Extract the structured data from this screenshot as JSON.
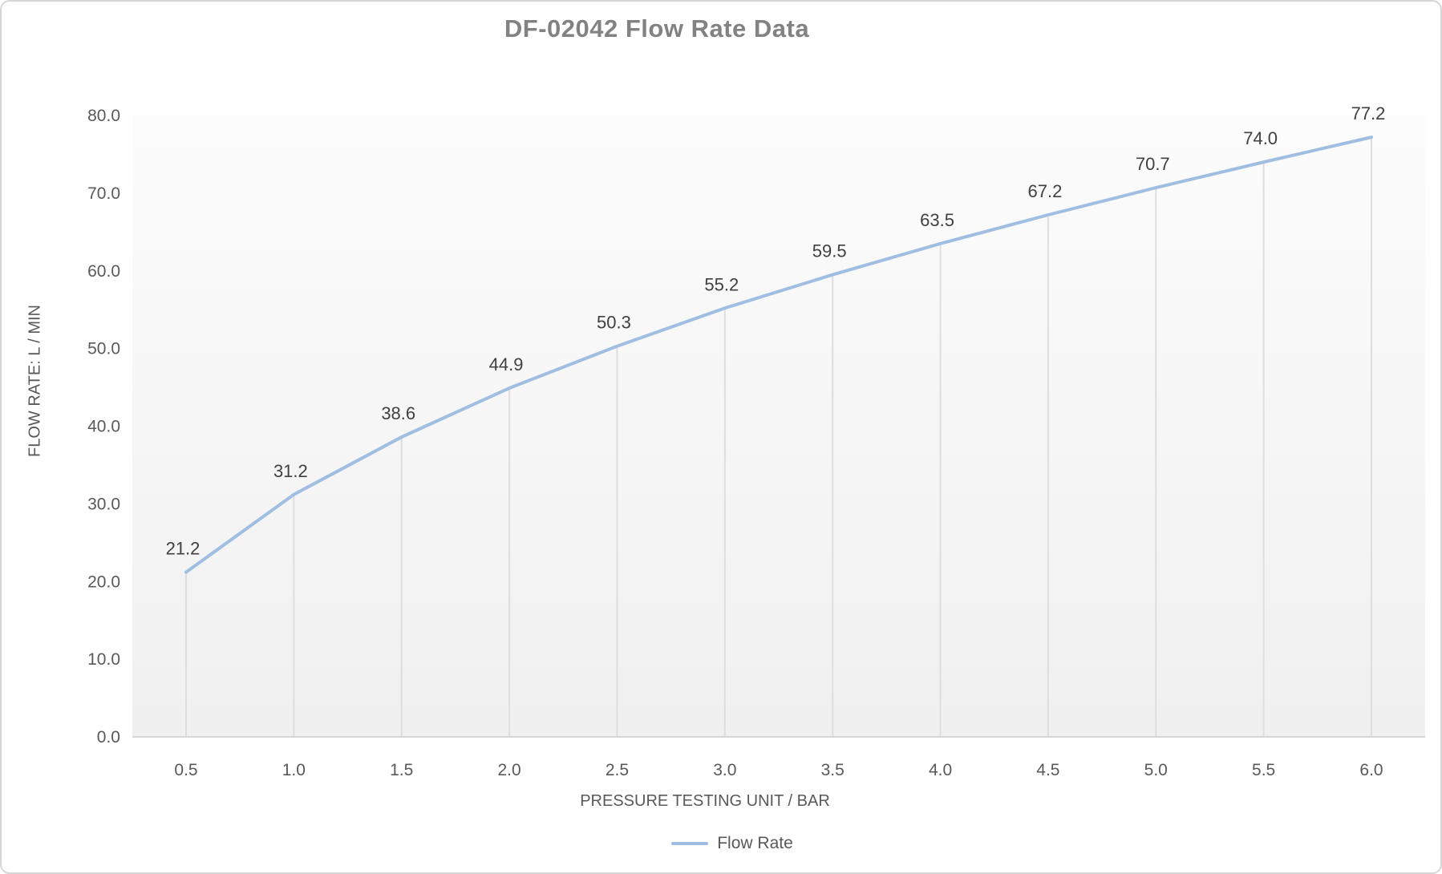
{
  "chart_data": {
    "type": "line",
    "title": "DF-02042 Flow Rate Data",
    "xlabel": "PRESSURE TESTING UNIT / BAR",
    "ylabel": "FLOW RATE: L / MIN",
    "legend": "Flow Rate",
    "x": [
      0.5,
      1.0,
      1.5,
      2.0,
      2.5,
      3.0,
      3.5,
      4.0,
      4.5,
      5.0,
      5.5,
      6.0
    ],
    "values": [
      21.2,
      31.2,
      38.6,
      44.9,
      50.3,
      55.2,
      59.5,
      63.5,
      67.2,
      70.7,
      74.0,
      77.2
    ],
    "ylim": [
      0,
      80
    ],
    "ytick_step": 10,
    "tick_decimals": 1,
    "grid": "off",
    "drop_lines": true,
    "markers": false,
    "legend_position": "bottom",
    "colors": {
      "line": "#a0bee1",
      "drop_line": "#dedede",
      "axis_line": "#d6d6d6",
      "title": "#828282",
      "tick_label": "#595959",
      "data_label": "#404040",
      "plot_bg_top": "#fcfcfc",
      "plot_bg_bottom": "#f0f0f0"
    }
  }
}
